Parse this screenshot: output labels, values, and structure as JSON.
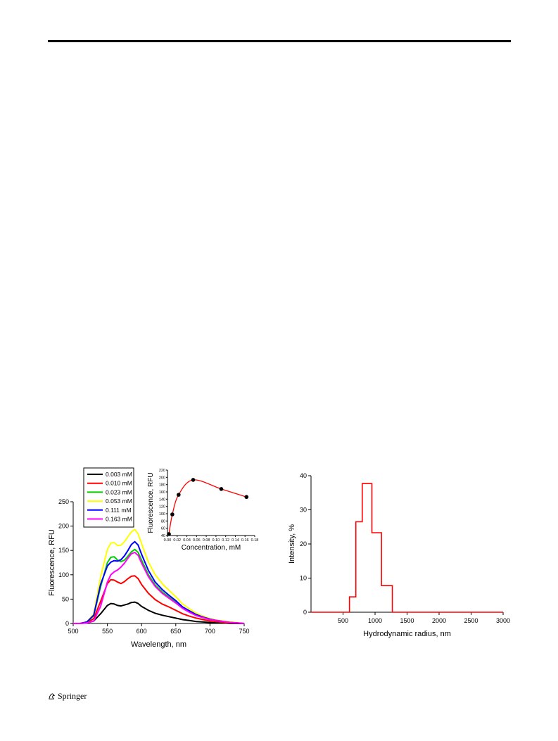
{
  "page": {
    "footer_text": "Springer",
    "footer_icon": "springer-horse-icon"
  },
  "chart_data": [
    {
      "type": "line",
      "title": "",
      "xlabel": "Wavelength, nm",
      "ylabel": "Fluorescence, RFU",
      "xlim": [
        500,
        750
      ],
      "ylim": [
        0,
        250
      ],
      "xticks": [
        500,
        550,
        600,
        650,
        700,
        750
      ],
      "yticks": [
        0,
        50,
        100,
        150,
        200,
        250
      ],
      "legend_position": "top-left",
      "x": [
        500,
        510,
        520,
        530,
        540,
        550,
        555,
        560,
        565,
        570,
        575,
        580,
        585,
        590,
        595,
        600,
        610,
        620,
        630,
        640,
        650,
        660,
        670,
        680,
        690,
        700,
        710,
        720,
        730,
        740,
        750
      ],
      "series": [
        {
          "name": "0.003 mM",
          "color": "#000000",
          "values": [
            0,
            0,
            1,
            5,
            20,
            37,
            41,
            40,
            37,
            36,
            38,
            40,
            43,
            44,
            41,
            35,
            27,
            21,
            17,
            14,
            11,
            8,
            6,
            4,
            3,
            2,
            1,
            1,
            0,
            0,
            0
          ]
        },
        {
          "name": "0.010 mM",
          "color": "#ff0000",
          "values": [
            0,
            0,
            2,
            10,
            45,
            82,
            90,
            89,
            85,
            82,
            86,
            92,
            97,
            98,
            92,
            80,
            62,
            49,
            40,
            34,
            27,
            20,
            15,
            11,
            8,
            5,
            4,
            2,
            1,
            1,
            0
          ]
        },
        {
          "name": "0.023 mM",
          "color": "#00cc00",
          "values": [
            0,
            0,
            3,
            16,
            75,
            125,
            136,
            137,
            130,
            127,
            130,
            138,
            147,
            152,
            146,
            130,
            100,
            79,
            65,
            54,
            44,
            32,
            24,
            17,
            12,
            8,
            6,
            4,
            2,
            1,
            0
          ]
        },
        {
          "name": "0.053 mM",
          "color": "#ffff00",
          "values": [
            0,
            0,
            3,
            20,
            95,
            152,
            165,
            166,
            160,
            161,
            168,
            178,
            188,
            193,
            184,
            164,
            126,
            100,
            82,
            68,
            55,
            40,
            30,
            21,
            15,
            10,
            7,
            5,
            3,
            2,
            0
          ]
        },
        {
          "name": "0.111 mM",
          "color": "#0000ff",
          "values": [
            0,
            0,
            3,
            17,
            80,
            118,
            126,
            129,
            128,
            131,
            139,
            150,
            162,
            168,
            161,
            142,
            109,
            85,
            70,
            58,
            47,
            34,
            26,
            18,
            13,
            9,
            6,
            4,
            2,
            1,
            0
          ]
        },
        {
          "name": "0.163 mM",
          "color": "#ff00ff",
          "values": [
            0,
            0,
            1,
            5,
            35,
            85,
            100,
            106,
            110,
            116,
            124,
            134,
            143,
            146,
            140,
            124,
            96,
            76,
            62,
            52,
            42,
            31,
            23,
            16,
            12,
            8,
            6,
            4,
            2,
            1,
            0
          ]
        }
      ],
      "inset": {
        "type": "scatter",
        "xlabel": "Concentration, mM",
        "ylabel": "Fluorescence, RFU",
        "xlim": [
          0,
          0.18
        ],
        "ylim": [
          40,
          220
        ],
        "xticks": [
          "0.00",
          "0.02",
          "0.04",
          "0.06",
          "0.08",
          "0.10",
          "0.12",
          "0.14",
          "0.16",
          "0.18"
        ],
        "yticks": [
          "40",
          "60",
          "80",
          "100",
          "120",
          "140",
          "160",
          "180",
          "200",
          "220"
        ],
        "points": [
          {
            "x": 0.003,
            "y": 44
          },
          {
            "x": 0.01,
            "y": 98
          },
          {
            "x": 0.023,
            "y": 152
          },
          {
            "x": 0.053,
            "y": 193
          },
          {
            "x": 0.111,
            "y": 168
          },
          {
            "x": 0.163,
            "y": 146
          }
        ],
        "fit_color": "#ff0000"
      }
    },
    {
      "type": "bar",
      "title": "",
      "xlabel": "Hydrodynamic radius, nm",
      "ylabel": "Intensity, %",
      "xlim": [
        0,
        3000
      ],
      "ylim": [
        0,
        40
      ],
      "xticks": [
        "500",
        "1000",
        "1500",
        "2000",
        "2500",
        "3000"
      ],
      "yticks": [
        "0",
        "10",
        "20",
        "30",
        "40"
      ],
      "line_color": "#ff0000",
      "step_x": [
        0,
        600,
        600,
        700,
        700,
        800,
        800,
        950,
        950,
        1100,
        1100,
        1270,
        1270,
        3000
      ],
      "step_y": [
        0,
        0,
        4.5,
        4.5,
        26.5,
        26.5,
        37.7,
        37.7,
        23.3,
        23.3,
        7.8,
        7.8,
        0,
        0
      ]
    }
  ]
}
